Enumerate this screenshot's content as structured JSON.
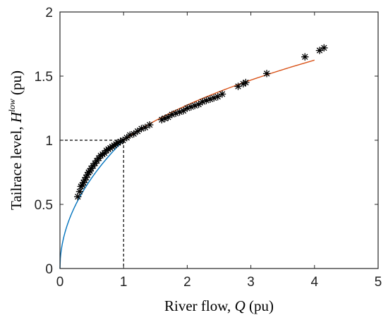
{
  "chart_data": {
    "type": "scatter",
    "xlabel": {
      "prefix": "River flow, ",
      "symbol": "Q",
      "suffix": " (pu)"
    },
    "ylabel": {
      "prefix": "Tailrace level, ",
      "symbol": "H",
      "superscript": "low",
      "suffix": " (pu)"
    },
    "xlim": [
      0,
      5
    ],
    "ylim": [
      0,
      2
    ],
    "xticks": [
      "0",
      "1",
      "2",
      "3",
      "4",
      "5"
    ],
    "yticks": [
      "0",
      "0.5",
      "1",
      "1.5",
      "2"
    ],
    "grid": false,
    "legend": "none",
    "series": [
      {
        "kind": "markers",
        "marker": "asterisk",
        "color": "#000000",
        "x": [
          0.28,
          0.31,
          0.33,
          0.35,
          0.37,
          0.39,
          0.41,
          0.43,
          0.45,
          0.47,
          0.49,
          0.52,
          0.55,
          0.58,
          0.61,
          0.64,
          0.67,
          0.7,
          0.73,
          0.76,
          0.79,
          0.82,
          0.85,
          0.88,
          0.91,
          0.95,
          0.99,
          1.05,
          1.1,
          1.16,
          1.22,
          1.28,
          1.34,
          1.41,
          1.6,
          1.65,
          1.7,
          1.76,
          1.82,
          1.88,
          1.94,
          2.0,
          2.06,
          2.12,
          2.18,
          2.24,
          2.3,
          2.36,
          2.42,
          2.48,
          2.55,
          2.8,
          2.88,
          2.92,
          3.25,
          3.85,
          4.08,
          4.15
        ],
        "y": [
          0.56,
          0.6,
          0.64,
          0.65,
          0.67,
          0.69,
          0.71,
          0.73,
          0.75,
          0.76,
          0.78,
          0.8,
          0.82,
          0.84,
          0.86,
          0.88,
          0.89,
          0.9,
          0.92,
          0.93,
          0.94,
          0.95,
          0.96,
          0.97,
          0.98,
          0.99,
          1.0,
          1.02,
          1.04,
          1.05,
          1.07,
          1.09,
          1.1,
          1.12,
          1.16,
          1.17,
          1.18,
          1.2,
          1.21,
          1.22,
          1.23,
          1.25,
          1.26,
          1.27,
          1.28,
          1.3,
          1.31,
          1.32,
          1.33,
          1.34,
          1.36,
          1.42,
          1.44,
          1.45,
          1.52,
          1.65,
          1.7,
          1.72
        ]
      },
      {
        "kind": "line",
        "color": "#0072bd",
        "formula": "y = x^0.5",
        "x_range": [
          0,
          1
        ]
      },
      {
        "kind": "line",
        "color": "#d95319",
        "formula": "y = x^0.35",
        "x_range": [
          1,
          4
        ]
      }
    ],
    "reference_lines": [
      {
        "style": "dashed",
        "color": "#000000",
        "from": [
          0,
          1
        ],
        "to": [
          1,
          1
        ]
      },
      {
        "style": "dashed",
        "color": "#000000",
        "from": [
          1,
          1
        ],
        "to": [
          1,
          0
        ]
      }
    ]
  }
}
